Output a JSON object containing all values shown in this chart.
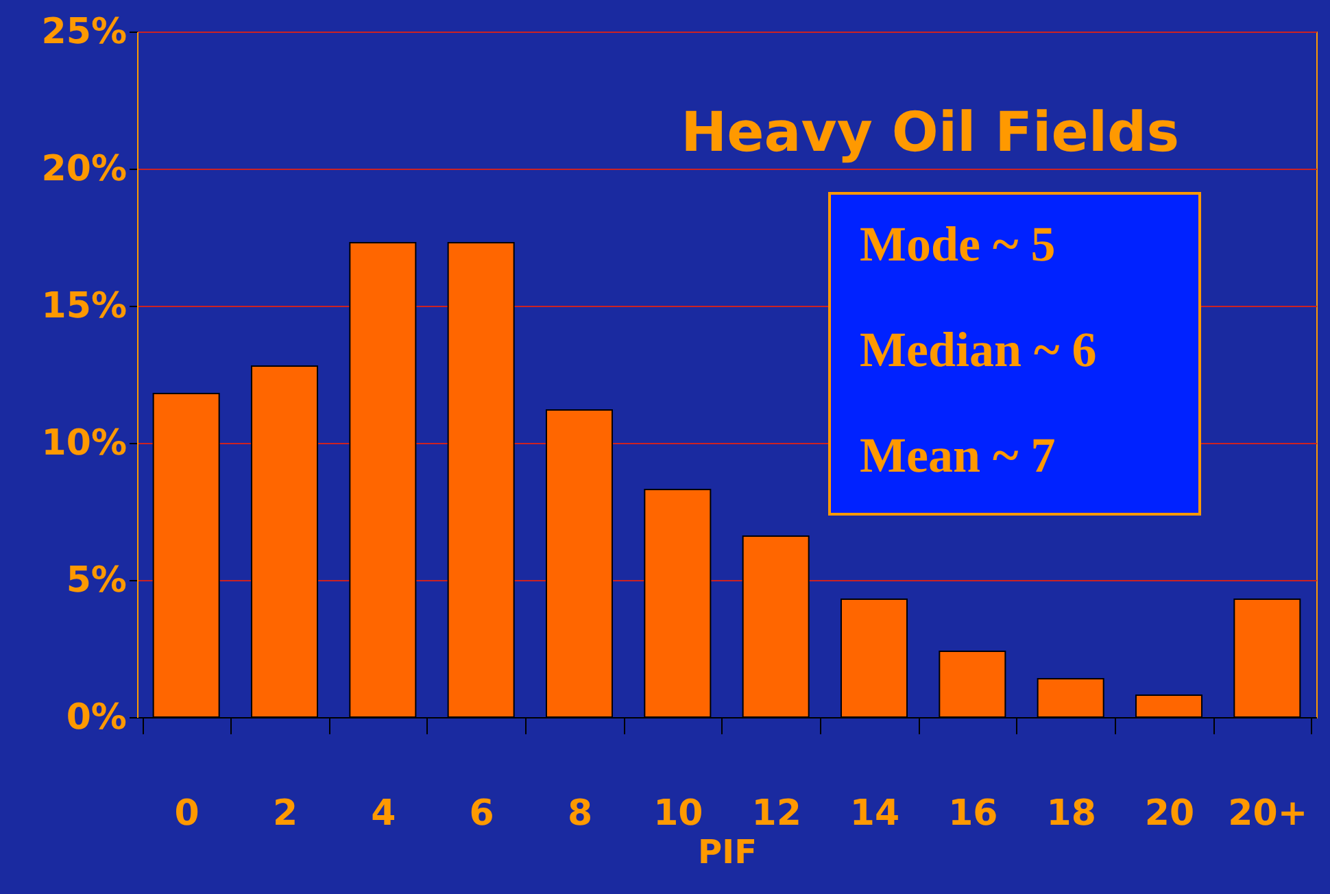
{
  "chart_data": {
    "type": "bar",
    "title": "Heavy Oil Fields",
    "xlabel": "PIF",
    "categories": [
      "0",
      "2",
      "4",
      "6",
      "8",
      "10",
      "12",
      "14",
      "16",
      "18",
      "20",
      "20+"
    ],
    "values": [
      11.8,
      12.8,
      17.3,
      17.3,
      11.2,
      8.3,
      6.6,
      4.3,
      2.4,
      1.4,
      0.8,
      4.3
    ],
    "color": "#ff6600",
    "ylim": [
      0,
      25
    ],
    "yticks": [
      {
        "value": 0,
        "label": "0%"
      },
      {
        "value": 5,
        "label": "5%"
      },
      {
        "value": 10,
        "label": "10%"
      },
      {
        "value": 15,
        "label": "15%"
      },
      {
        "value": 20,
        "label": "20%"
      },
      {
        "value": 25,
        "label": "25%"
      }
    ],
    "grid": "y",
    "annotations": [
      "Mode  ~   5",
      "Median ~ 6",
      "Mean    ~  7"
    ]
  }
}
